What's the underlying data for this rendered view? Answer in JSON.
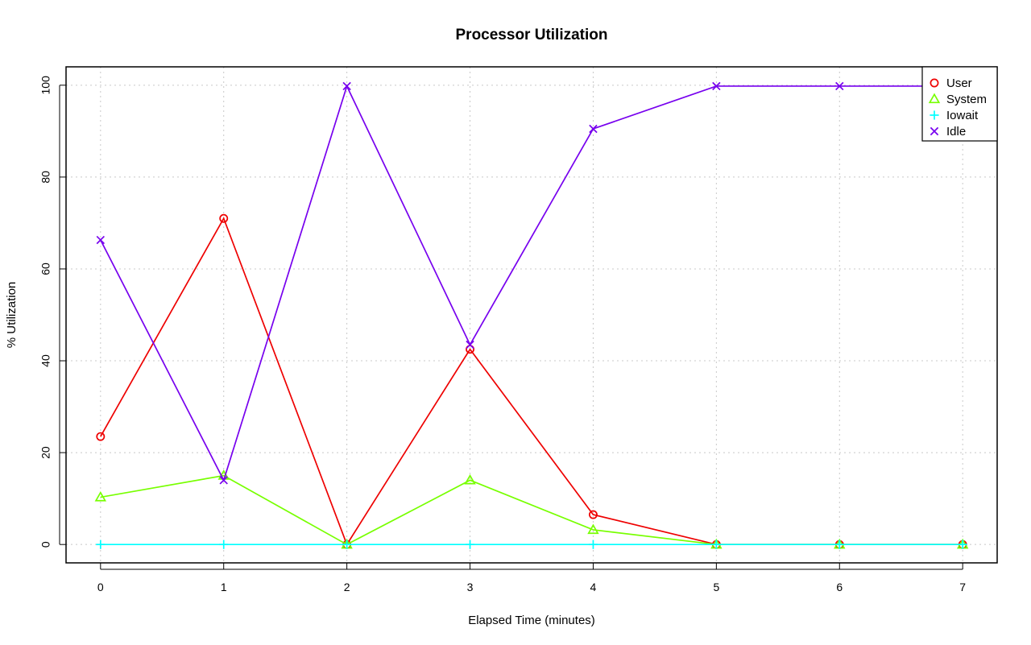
{
  "chart_data": {
    "type": "line",
    "title": "Processor Utilization",
    "xlabel": "Elapsed Time (minutes)",
    "ylabel": "% Utilization",
    "x": [
      0,
      1,
      2,
      3,
      4,
      5,
      6,
      7
    ],
    "xticks": [
      "0",
      "1",
      "2",
      "3",
      "4",
      "5",
      "6",
      "7"
    ],
    "yticks": [
      "0",
      "20",
      "40",
      "60",
      "80",
      "100"
    ],
    "xlim": [
      -0.28,
      7.28
    ],
    "ylim": [
      -4,
      104
    ],
    "grid": true,
    "legend_position": "top-right",
    "series": [
      {
        "name": "User",
        "marker": "circle",
        "color": "#ee0000",
        "values": [
          23.5,
          71.0,
          0.0,
          42.5,
          6.5,
          0.0,
          0.0,
          0.0
        ]
      },
      {
        "name": "System",
        "marker": "triangle",
        "color": "#77ff00",
        "values": [
          10.3,
          15.0,
          0.0,
          14.0,
          3.2,
          0.0,
          0.0,
          0.0
        ]
      },
      {
        "name": "Iowait",
        "marker": "plus",
        "color": "#00ffff",
        "values": [
          0.0,
          0.0,
          0.0,
          0.0,
          0.0,
          0.0,
          0.0,
          0.0
        ]
      },
      {
        "name": "Idle",
        "marker": "cross",
        "color": "#7700ee",
        "values": [
          66.3,
          14.0,
          99.8,
          43.5,
          90.5,
          99.8,
          99.8,
          99.8
        ]
      }
    ]
  }
}
